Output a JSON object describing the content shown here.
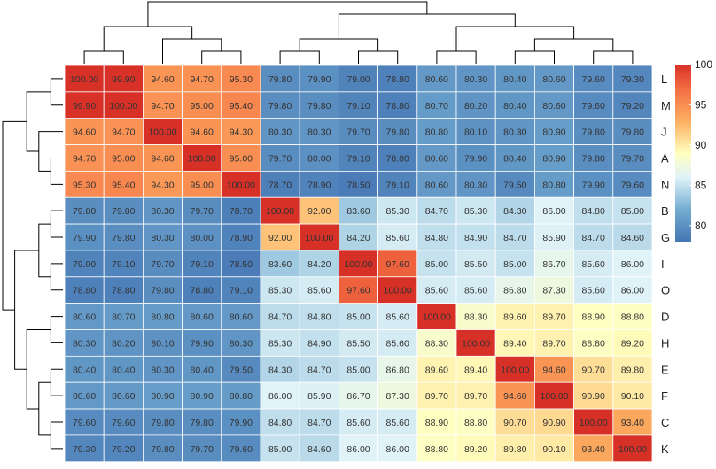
{
  "chart_data": {
    "type": "heatmap",
    "title": "",
    "row_labels": [
      "L",
      "M",
      "J",
      "A",
      "N",
      "B",
      "G",
      "I",
      "O",
      "D",
      "H",
      "E",
      "F",
      "C",
      "K"
    ],
    "values": [
      [
        100.0,
        99.9,
        94.6,
        94.7,
        95.3,
        79.8,
        79.9,
        79.0,
        78.8,
        80.6,
        80.3,
        80.4,
        80.6,
        79.6,
        79.3
      ],
      [
        99.9,
        100.0,
        94.7,
        95.0,
        95.4,
        79.8,
        79.8,
        79.1,
        78.8,
        80.7,
        80.2,
        80.4,
        80.6,
        79.6,
        79.2
      ],
      [
        94.6,
        94.7,
        100.0,
        94.6,
        94.3,
        80.3,
        80.3,
        79.7,
        79.8,
        80.8,
        80.1,
        80.3,
        80.9,
        79.8,
        79.8
      ],
      [
        94.7,
        95.0,
        94.6,
        100.0,
        95.0,
        79.7,
        80.0,
        79.1,
        78.8,
        80.6,
        79.9,
        80.4,
        80.9,
        79.8,
        79.7
      ],
      [
        95.3,
        95.4,
        94.3,
        95.0,
        100.0,
        78.7,
        78.9,
        78.5,
        79.1,
        80.6,
        80.3,
        79.5,
        80.8,
        79.9,
        79.6
      ],
      [
        79.8,
        79.8,
        80.3,
        79.7,
        78.7,
        100.0,
        92.0,
        83.6,
        85.3,
        84.7,
        85.3,
        84.3,
        86.0,
        84.8,
        85.0
      ],
      [
        79.9,
        79.8,
        80.3,
        80.0,
        78.9,
        92.0,
        100.0,
        84.2,
        85.6,
        84.8,
        84.9,
        84.7,
        85.9,
        84.7,
        84.6
      ],
      [
        79.0,
        79.1,
        79.7,
        79.1,
        78.5,
        83.6,
        84.2,
        100.0,
        97.6,
        85.0,
        85.5,
        85.0,
        86.7,
        85.6,
        86.0
      ],
      [
        78.8,
        78.8,
        79.8,
        78.8,
        79.1,
        85.3,
        85.6,
        97.6,
        100.0,
        85.6,
        85.6,
        86.8,
        87.3,
        85.6,
        86.0
      ],
      [
        80.6,
        80.7,
        80.8,
        80.6,
        80.6,
        84.7,
        84.8,
        85.0,
        85.6,
        100.0,
        88.3,
        89.6,
        89.7,
        88.9,
        88.8
      ],
      [
        80.3,
        80.2,
        80.1,
        79.9,
        80.3,
        85.3,
        84.9,
        85.5,
        85.6,
        88.3,
        100.0,
        89.4,
        89.7,
        88.8,
        89.2
      ],
      [
        80.4,
        80.4,
        80.3,
        80.4,
        79.5,
        84.3,
        84.7,
        85.0,
        86.8,
        89.6,
        89.4,
        100.0,
        94.6,
        90.7,
        89.8
      ],
      [
        80.6,
        80.6,
        80.9,
        80.9,
        80.8,
        86.0,
        85.9,
        86.7,
        87.3,
        89.7,
        89.7,
        94.6,
        100.0,
        90.9,
        90.1
      ],
      [
        79.6,
        79.6,
        79.8,
        79.8,
        79.9,
        84.8,
        84.7,
        85.6,
        85.6,
        88.9,
        88.8,
        90.7,
        90.9,
        100.0,
        93.4
      ],
      [
        79.3,
        79.2,
        79.8,
        79.7,
        79.6,
        85.0,
        84.6,
        86.0,
        86.0,
        88.8,
        89.2,
        89.8,
        90.1,
        93.4,
        100.0
      ]
    ],
    "value_format_decimals": 2,
    "color_scale": {
      "range": [
        78,
        100
      ],
      "stops": [
        {
          "value": 78,
          "color": "#4575b4"
        },
        {
          "value": 82,
          "color": "#74add1"
        },
        {
          "value": 86,
          "color": "#e0f3f8"
        },
        {
          "value": 89,
          "color": "#ffffbf"
        },
        {
          "value": 93,
          "color": "#fdae61"
        },
        {
          "value": 97,
          "color": "#f46d43"
        },
        {
          "value": 100,
          "color": "#d73027"
        }
      ]
    },
    "legend": {
      "placement": "top-right",
      "ticks": [
        80,
        85,
        90,
        95,
        100
      ]
    },
    "dendrogram": "hierarchical clustering shown on top (columns) and left (rows)"
  }
}
